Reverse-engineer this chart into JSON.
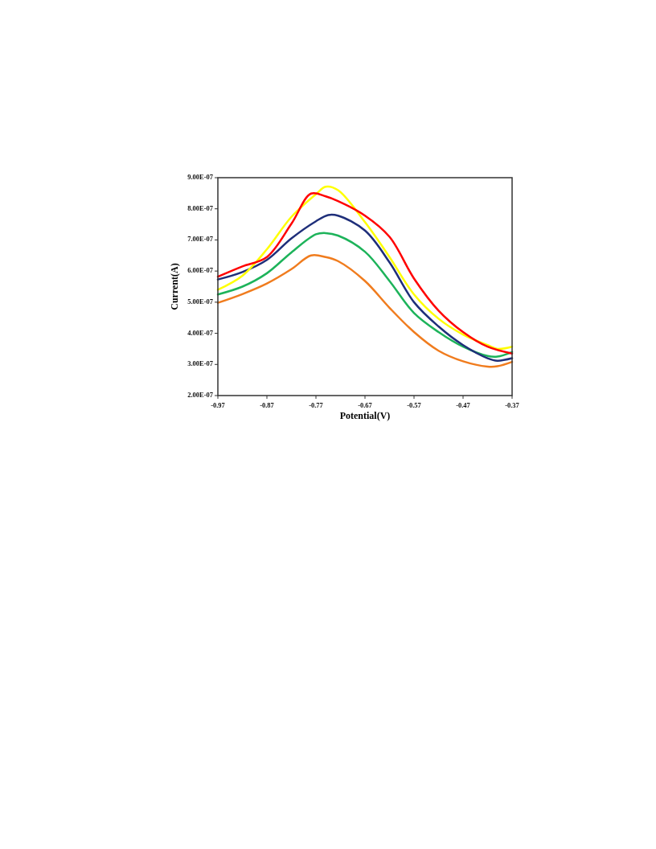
{
  "chart_data": {
    "type": "line",
    "xlabel": "Potential(V)",
    "ylabel": "Current(A)",
    "xlim": [
      -0.97,
      -0.37
    ],
    "xticks": [
      -0.97,
      -0.87,
      -0.77,
      -0.67,
      -0.57,
      -0.47,
      -0.37
    ],
    "ylim": [
      2e-07,
      9e-07
    ],
    "yticks": [
      {
        "value": 2e-07,
        "label": "2.00E-07"
      },
      {
        "value": 3e-07,
        "label": "3.00E-07"
      },
      {
        "value": 4e-07,
        "label": "4.00E-07"
      },
      {
        "value": 5e-07,
        "label": "5.00E-07"
      },
      {
        "value": 6e-07,
        "label": "6.00E-07"
      },
      {
        "value": 7e-07,
        "label": "7.00E-07"
      },
      {
        "value": 8e-07,
        "label": "8.00E-07"
      },
      {
        "value": 9e-07,
        "label": "9.00E-07"
      }
    ],
    "grid": false,
    "marker": "none",
    "line_style": "solid",
    "series": [
      {
        "color": "#f07c1e",
        "x": [
          -0.97,
          -0.92,
          -0.87,
          -0.82,
          -0.78,
          -0.75,
          -0.725,
          -0.67,
          -0.62,
          -0.57,
          -0.52,
          -0.47,
          -0.42,
          -0.4,
          -0.37
        ],
        "values": [
          4.98e-07,
          5.26e-07,
          5.6e-07,
          6.06e-07,
          6.5e-07,
          6.45e-07,
          6.32e-07,
          5.68e-07,
          4.82e-07,
          4.04e-07,
          3.44e-07,
          3.1e-07,
          2.93e-07,
          2.94e-07,
          3.08e-07
        ]
      },
      {
        "color": "#1db35a",
        "x": [
          -0.97,
          -0.92,
          -0.87,
          -0.82,
          -0.77,
          -0.75,
          -0.725,
          -0.67,
          -0.62,
          -0.57,
          -0.52,
          -0.47,
          -0.42,
          -0.4,
          -0.37
        ],
        "values": [
          5.25e-07,
          5.5e-07,
          5.93e-07,
          6.6e-07,
          7.18e-07,
          7.22e-07,
          7.14e-07,
          6.62e-07,
          5.68e-07,
          4.65e-07,
          4.04e-07,
          3.57e-07,
          3.27e-07,
          3.25e-07,
          3.4e-07
        ]
      },
      {
        "color": "#1f2f7a",
        "x": [
          -0.97,
          -0.92,
          -0.87,
          -0.82,
          -0.77,
          -0.745,
          -0.725,
          -0.67,
          -0.62,
          -0.57,
          -0.52,
          -0.47,
          -0.42,
          -0.4,
          -0.37
        ],
        "values": [
          5.73e-07,
          5.97e-07,
          6.36e-07,
          7.05e-07,
          7.6e-07,
          7.8e-07,
          7.78e-07,
          7.3e-07,
          6.28e-07,
          5e-07,
          4.22e-07,
          3.62e-07,
          3.2e-07,
          3.12e-07,
          3.2e-07
        ]
      },
      {
        "color": "#ffff00",
        "x": [
          -0.97,
          -0.92,
          -0.87,
          -0.82,
          -0.77,
          -0.75,
          -0.725,
          -0.67,
          -0.62,
          -0.57,
          -0.52,
          -0.47,
          -0.42,
          -0.4,
          -0.37
        ],
        "values": [
          5.4e-07,
          5.85e-07,
          6.7e-07,
          7.74e-07,
          8.47e-07,
          8.71e-07,
          8.6e-07,
          7.57e-07,
          6.45e-07,
          5.25e-07,
          4.47e-07,
          3.96e-07,
          3.62e-07,
          3.5e-07,
          3.57e-07
        ]
      },
      {
        "color": "#ff0000",
        "x": [
          -0.97,
          -0.92,
          -0.87,
          -0.82,
          -0.78,
          -0.75,
          -0.725,
          -0.67,
          -0.62,
          -0.57,
          -0.52,
          -0.47,
          -0.42,
          -0.37
        ],
        "values": [
          5.82e-07,
          6.15e-07,
          6.45e-07,
          7.52e-07,
          8.49e-07,
          8.4e-07,
          8.25e-07,
          7.78e-07,
          7.1e-07,
          5.76e-07,
          4.73e-07,
          4.04e-07,
          3.57e-07,
          3.35e-07
        ]
      }
    ]
  }
}
